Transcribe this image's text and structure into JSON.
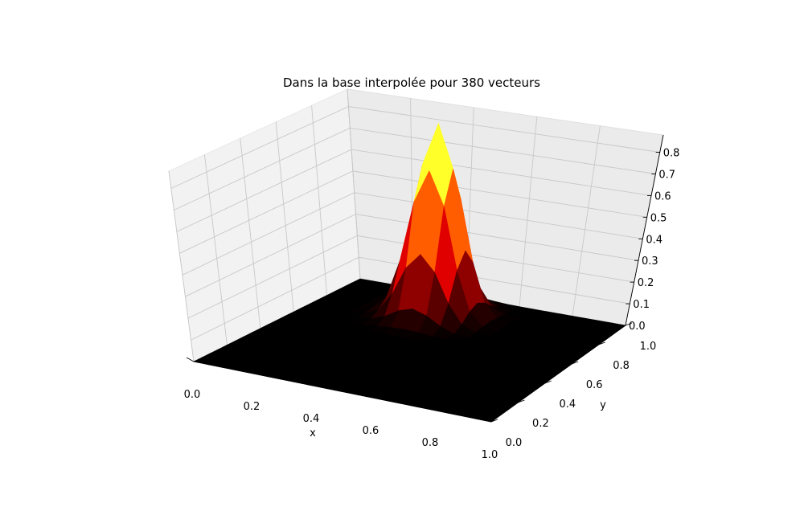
{
  "chart_data": {
    "type": "surface3d",
    "title": "Dans la base interpolée pour 380 vecteurs",
    "xlabel": "x",
    "ylabel": "y",
    "zlabel": "",
    "xlim": [
      0.0,
      1.0
    ],
    "ylim": [
      0.0,
      1.0
    ],
    "zlim": [
      0.0,
      0.88
    ],
    "xticks": [
      "0.0",
      "0.2",
      "0.4",
      "0.6",
      "0.8",
      "1.0"
    ],
    "yticks": [
      "0.0",
      "0.2",
      "0.4",
      "0.6",
      "0.8",
      "1.0"
    ],
    "zticks": [
      "0.0",
      "0.1",
      "0.2",
      "0.3",
      "0.4",
      "0.5",
      "0.6",
      "0.7",
      "0.8"
    ],
    "grid": true,
    "colormap": "hot",
    "grid_resolution": 20,
    "surface": {
      "shape": "single peak",
      "peak_x": 0.4,
      "peak_y": 0.8,
      "peak_value": 0.88,
      "spread": 0.07,
      "baseline": 0.0
    }
  }
}
